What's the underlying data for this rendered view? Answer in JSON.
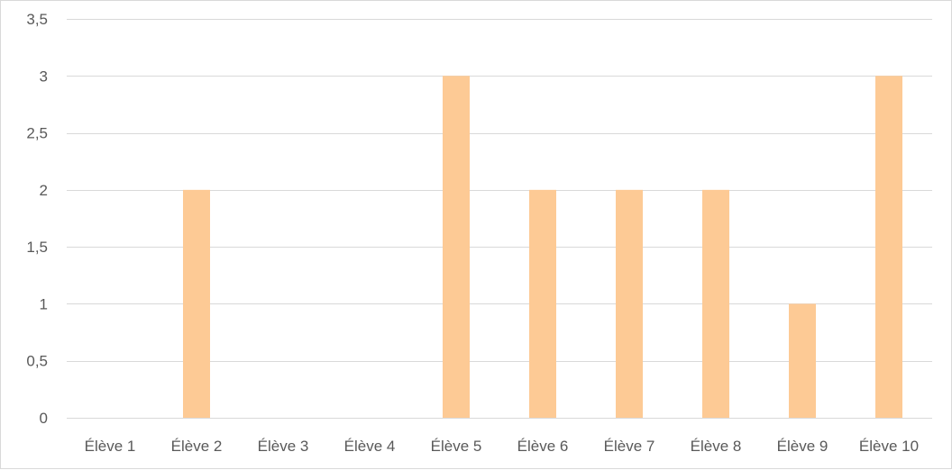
{
  "chart_data": {
    "type": "bar",
    "categories": [
      "Élève 1",
      "Élève 2",
      "Élève 3",
      "Élève 4",
      "Élève 5",
      "Élève 6",
      "Élève 7",
      "Élève 8",
      "Élève 9",
      "Élève 10"
    ],
    "values": [
      0,
      2,
      0,
      0,
      3,
      2,
      2,
      2,
      1,
      3
    ],
    "ylim": [
      0,
      3.5
    ],
    "yticks": [
      "0",
      "0,5",
      "1",
      "1,5",
      "2",
      "2,5",
      "3",
      "3,5"
    ],
    "title": "",
    "xlabel": "",
    "ylabel": "",
    "grid": true,
    "legend": "none",
    "colors": {
      "bar": "#fdca95",
      "grid": "#d9d9d9",
      "axis": "#d9d9d9",
      "text": "#595959"
    }
  }
}
